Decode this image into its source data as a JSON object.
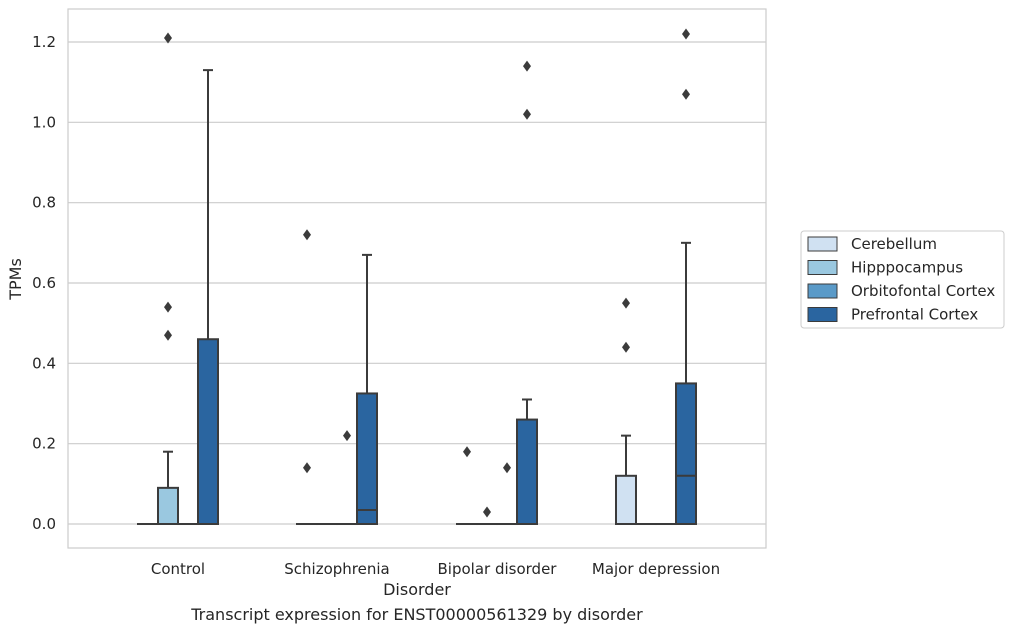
{
  "caption": "Transcript expression for ENST00000561329 by disorder",
  "chart_data": {
    "type": "box",
    "title": "",
    "xlabel": "Disorder",
    "ylabel": "TPMs",
    "ylim": [
      -0.06,
      1.28
    ],
    "yticks": [
      0.0,
      0.2,
      0.4,
      0.6,
      0.8,
      1.0,
      1.2
    ],
    "ytick_labels": [
      "0.0",
      "0.2",
      "0.4",
      "0.6",
      "0.8",
      "1.0",
      "1.2"
    ],
    "grid": "horizontal",
    "legend_position": "right-outside",
    "categories": [
      "Control",
      "Schizophrenia",
      "Bipolar disorder",
      "Major depression"
    ],
    "series": [
      {
        "name": "Cerebellum",
        "color": "#d0e1f2",
        "boxes": [
          {
            "q1": 0,
            "median": 0,
            "q3": 0,
            "whisker_low": 0,
            "whisker_high": 0,
            "outliers": []
          },
          {
            "q1": 0,
            "median": 0,
            "q3": 0,
            "whisker_low": 0,
            "whisker_high": 0,
            "outliers": [
              0.14,
              0.72
            ]
          },
          {
            "q1": 0,
            "median": 0,
            "q3": 0,
            "whisker_low": 0,
            "whisker_high": 0,
            "outliers": [
              0.18
            ]
          },
          {
            "q1": 0,
            "median": 0,
            "q3": 0.12,
            "whisker_low": 0,
            "whisker_high": 0.22,
            "outliers": [
              0.44,
              0.55
            ]
          }
        ]
      },
      {
        "name": "Hipppocampus",
        "color": "#9ac8e0",
        "boxes": [
          {
            "q1": 0,
            "median": 0,
            "q3": 0.09,
            "whisker_low": 0,
            "whisker_high": 0.18,
            "outliers": [
              0.47,
              0.54,
              1.21
            ]
          },
          {
            "q1": 0,
            "median": 0,
            "q3": 0,
            "whisker_low": 0,
            "whisker_high": 0,
            "outliers": []
          },
          {
            "q1": 0,
            "median": 0,
            "q3": 0,
            "whisker_low": 0,
            "whisker_high": 0,
            "outliers": [
              0.03
            ]
          },
          {
            "q1": 0,
            "median": 0,
            "q3": 0,
            "whisker_low": 0,
            "whisker_high": 0,
            "outliers": []
          }
        ]
      },
      {
        "name": "Orbitofontal Cortex",
        "color": "#5a9ac8",
        "boxes": [
          {
            "q1": 0,
            "median": 0,
            "q3": 0,
            "whisker_low": 0,
            "whisker_high": 0,
            "outliers": []
          },
          {
            "q1": 0,
            "median": 0,
            "q3": 0,
            "whisker_low": 0,
            "whisker_high": 0,
            "outliers": [
              0.22
            ]
          },
          {
            "q1": 0,
            "median": 0,
            "q3": 0,
            "whisker_low": 0,
            "whisker_high": 0,
            "outliers": [
              0.14
            ]
          },
          {
            "q1": 0,
            "median": 0,
            "q3": 0,
            "whisker_low": 0,
            "whisker_high": 0,
            "outliers": []
          }
        ]
      },
      {
        "name": "Prefrontal Cortex",
        "color": "#2a65a0",
        "boxes": [
          {
            "q1": 0,
            "median": 0,
            "q3": 0.46,
            "whisker_low": 0,
            "whisker_high": 1.13,
            "outliers": []
          },
          {
            "q1": 0,
            "median": 0.035,
            "q3": 0.325,
            "whisker_low": 0,
            "whisker_high": 0.67,
            "outliers": []
          },
          {
            "q1": 0,
            "median": 0,
            "q3": 0.26,
            "whisker_low": 0,
            "whisker_high": 0.31,
            "outliers": [
              1.02,
              1.14
            ]
          },
          {
            "q1": 0,
            "median": 0.12,
            "q3": 0.35,
            "whisker_low": 0,
            "whisker_high": 0.7,
            "outliers": [
              1.07,
              1.22
            ]
          }
        ]
      }
    ]
  }
}
